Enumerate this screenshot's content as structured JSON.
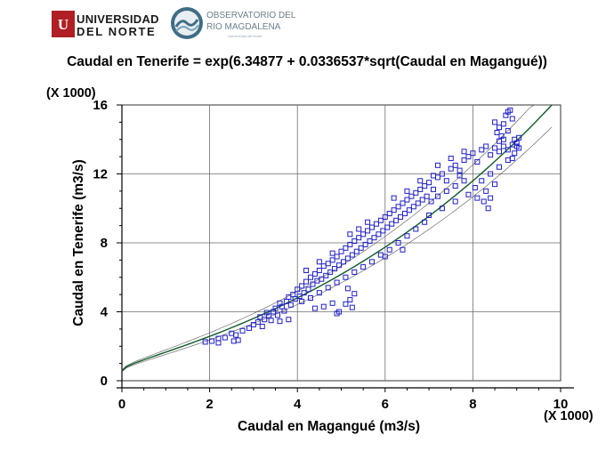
{
  "logos": {
    "university_line1": "UNIVERSIDAD",
    "university_line2": "DEL NORTE",
    "observatory_line1": "OBSERVATORIO DEL",
    "observatory_line2": "RIO MAGDALENA",
    "observatory_line3": "Universidad del Norte"
  },
  "colors": {
    "points": "#1f1fc9",
    "fit_line": "#0f5a2a",
    "band": "#555555",
    "grid": "#6e6e6e",
    "red_mark": "#b01f24"
  },
  "chart_data": {
    "type": "scatter",
    "title": "Caudal en Tenerife = exp(6.34877 + 0.0336537*sqrt(Caudal en Magangué))",
    "xlabel": "Caudal en Magangué (m3/s)",
    "ylabel": "Caudal en Tenerife (m3/s)",
    "x_multiplier": "(X 1000)",
    "y_multiplier": "(X 1000)",
    "xlim": [
      0,
      10
    ],
    "ylim": [
      0,
      16
    ],
    "xticks": [
      "0",
      "2",
      "4",
      "6",
      "8",
      "10"
    ],
    "yticks": [
      "0",
      "4",
      "8",
      "12",
      "16"
    ],
    "grid": true,
    "model": {
      "a": 6.34877,
      "b": 0.0336537
    },
    "marker": "open-square",
    "series": [
      {
        "points": [
          [
            1.9,
            2.25
          ],
          [
            2.05,
            2.3
          ],
          [
            2.2,
            2.45
          ],
          [
            2.35,
            2.5
          ],
          [
            2.5,
            2.75
          ],
          [
            2.6,
            2.65
          ],
          [
            2.75,
            2.9
          ],
          [
            2.9,
            3.05
          ],
          [
            2.55,
            2.3
          ],
          [
            2.2,
            2.2
          ],
          [
            2.65,
            2.35
          ],
          [
            3.0,
            3.25
          ],
          [
            3.1,
            3.4
          ],
          [
            3.2,
            3.15
          ],
          [
            3.25,
            3.55
          ],
          [
            3.35,
            3.75
          ],
          [
            3.4,
            3.5
          ],
          [
            3.45,
            4.0
          ],
          [
            3.5,
            4.2
          ],
          [
            3.55,
            3.8
          ],
          [
            3.6,
            4.5
          ],
          [
            3.65,
            4.3
          ],
          [
            3.7,
            4.05
          ],
          [
            3.75,
            4.6
          ],
          [
            3.8,
            4.85
          ],
          [
            3.85,
            4.4
          ],
          [
            3.9,
            5.0
          ],
          [
            3.95,
            4.75
          ],
          [
            3.3,
            3.95
          ],
          [
            3.15,
            3.7
          ],
          [
            3.6,
            3.45
          ],
          [
            3.8,
            3.55
          ],
          [
            4.0,
            5.3
          ],
          [
            4.05,
            4.9
          ],
          [
            4.1,
            5.5
          ],
          [
            4.15,
            5.1
          ],
          [
            4.2,
            5.75
          ],
          [
            4.25,
            5.3
          ],
          [
            4.3,
            6.0
          ],
          [
            4.35,
            5.6
          ],
          [
            4.4,
            6.2
          ],
          [
            4.45,
            5.8
          ],
          [
            4.5,
            6.4
          ],
          [
            4.55,
            5.9
          ],
          [
            4.6,
            6.65
          ],
          [
            4.65,
            6.1
          ],
          [
            4.7,
            6.8
          ],
          [
            4.75,
            6.3
          ],
          [
            4.8,
            7.0
          ],
          [
            4.85,
            6.5
          ],
          [
            4.9,
            7.2
          ],
          [
            4.95,
            6.7
          ],
          [
            4.1,
            4.6
          ],
          [
            4.3,
            4.8
          ],
          [
            4.5,
            5.1
          ],
          [
            4.7,
            5.4
          ],
          [
            4.9,
            5.7
          ],
          [
            4.2,
            6.4
          ],
          [
            4.5,
            6.9
          ],
          [
            4.8,
            7.4
          ],
          [
            4.6,
            4.3
          ],
          [
            4.8,
            4.5
          ],
          [
            4.4,
            4.2
          ],
          [
            5.0,
            7.5
          ],
          [
            5.05,
            6.9
          ],
          [
            5.1,
            7.7
          ],
          [
            5.15,
            7.1
          ],
          [
            5.2,
            7.9
          ],
          [
            5.25,
            7.3
          ],
          [
            5.3,
            8.1
          ],
          [
            5.35,
            7.5
          ],
          [
            5.4,
            8.3
          ],
          [
            5.45,
            7.7
          ],
          [
            5.5,
            8.5
          ],
          [
            5.55,
            7.9
          ],
          [
            5.6,
            8.7
          ],
          [
            5.65,
            8.1
          ],
          [
            5.7,
            8.9
          ],
          [
            5.75,
            8.3
          ],
          [
            5.8,
            9.1
          ],
          [
            5.85,
            8.5
          ],
          [
            5.9,
            9.3
          ],
          [
            5.95,
            8.7
          ],
          [
            5.1,
            6.0
          ],
          [
            5.3,
            6.3
          ],
          [
            5.5,
            6.6
          ],
          [
            5.7,
            6.9
          ],
          [
            5.9,
            7.3
          ],
          [
            5.2,
            8.5
          ],
          [
            5.4,
            8.8
          ],
          [
            5.6,
            9.2
          ],
          [
            5.15,
            5.35
          ],
          [
            5.3,
            5.05
          ],
          [
            5.2,
            4.7
          ],
          [
            4.95,
            4.0
          ],
          [
            5.1,
            4.45
          ],
          [
            5.25,
            4.25
          ],
          [
            4.9,
            3.9
          ],
          [
            6.0,
            9.5
          ],
          [
            6.05,
            8.9
          ],
          [
            6.1,
            9.7
          ],
          [
            6.15,
            9.1
          ],
          [
            6.2,
            9.9
          ],
          [
            6.25,
            9.3
          ],
          [
            6.3,
            10.1
          ],
          [
            6.35,
            9.5
          ],
          [
            6.4,
            10.3
          ],
          [
            6.45,
            9.7
          ],
          [
            6.5,
            10.5
          ],
          [
            6.55,
            9.9
          ],
          [
            6.6,
            10.7
          ],
          [
            6.65,
            10.1
          ],
          [
            6.7,
            10.9
          ],
          [
            6.75,
            10.3
          ],
          [
            6.8,
            11.1
          ],
          [
            6.85,
            10.5
          ],
          [
            6.9,
            11.3
          ],
          [
            6.95,
            10.7
          ],
          [
            6.1,
            7.6
          ],
          [
            6.3,
            8.0
          ],
          [
            6.5,
            8.4
          ],
          [
            6.7,
            8.8
          ],
          [
            6.9,
            9.2
          ],
          [
            6.2,
            10.6
          ],
          [
            6.5,
            11.0
          ],
          [
            6.8,
            11.6
          ],
          [
            6.0,
            7.2
          ],
          [
            6.4,
            7.6
          ],
          [
            7.0,
            11.5
          ],
          [
            7.1,
            11.1
          ],
          [
            7.2,
            11.8
          ],
          [
            7.3,
            12.0
          ],
          [
            7.4,
            11.6
          ],
          [
            7.5,
            12.3
          ],
          [
            7.6,
            12.5
          ],
          [
            7.7,
            12.2
          ],
          [
            7.8,
            12.8
          ],
          [
            7.9,
            13.0
          ],
          [
            7.05,
            10.4
          ],
          [
            7.2,
            10.7
          ],
          [
            7.4,
            11.0
          ],
          [
            7.6,
            11.3
          ],
          [
            7.8,
            11.6
          ],
          [
            7.0,
            9.6
          ],
          [
            7.3,
            10.0
          ],
          [
            7.6,
            10.4
          ],
          [
            7.9,
            10.8
          ],
          [
            7.2,
            12.5
          ],
          [
            7.5,
            12.9
          ],
          [
            7.8,
            13.3
          ],
          [
            7.1,
            11.9
          ],
          [
            7.7,
            11.9
          ],
          [
            8.0,
            13.2
          ],
          [
            8.1,
            12.7
          ],
          [
            8.2,
            13.4
          ],
          [
            8.3,
            13.6
          ],
          [
            8.4,
            13.1
          ],
          [
            8.5,
            13.5
          ],
          [
            8.6,
            13.3
          ],
          [
            8.7,
            13.6
          ],
          [
            8.8,
            13.4
          ],
          [
            8.9,
            13.7
          ],
          [
            8.05,
            11.2
          ],
          [
            8.2,
            11.6
          ],
          [
            8.4,
            12.0
          ],
          [
            8.6,
            12.4
          ],
          [
            8.8,
            12.8
          ],
          [
            8.1,
            10.6
          ],
          [
            8.3,
            11.0
          ],
          [
            8.5,
            11.4
          ],
          [
            8.25,
            10.4
          ],
          [
            8.35,
            10.0
          ],
          [
            8.4,
            10.6
          ],
          [
            8.5,
            15.0
          ],
          [
            8.55,
            14.4
          ],
          [
            8.6,
            14.7
          ],
          [
            8.65,
            14.2
          ],
          [
            8.7,
            14.9
          ],
          [
            8.75,
            15.4
          ],
          [
            8.8,
            15.6
          ],
          [
            8.85,
            15.7
          ],
          [
            8.7,
            14.0
          ],
          [
            8.8,
            14.5
          ],
          [
            8.9,
            15.2
          ],
          [
            8.95,
            14.0
          ],
          [
            9.0,
            13.8
          ],
          [
            9.05,
            14.1
          ],
          [
            9.0,
            13.6
          ],
          [
            8.6,
            13.9
          ],
          [
            8.95,
            13.2
          ],
          [
            9.05,
            13.5
          ],
          [
            8.9,
            12.9
          ]
        ]
      }
    ]
  }
}
